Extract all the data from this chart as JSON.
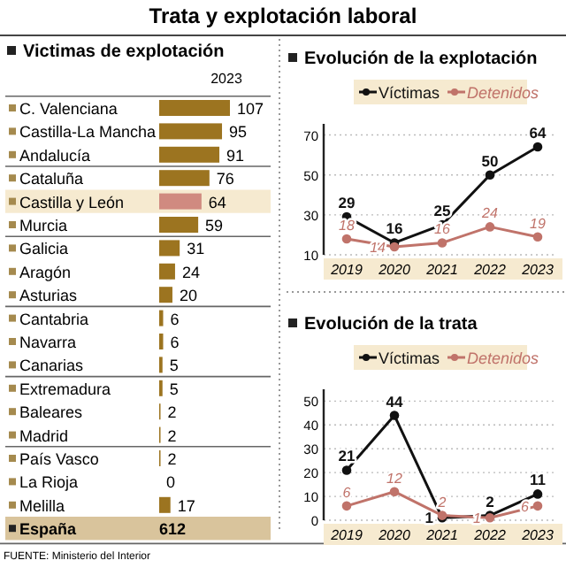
{
  "chart_data": [
    {
      "type": "bar",
      "orientation": "horizontal",
      "title": "Trata y explotación laboral",
      "subtitle": "Victimas de explotación",
      "legend_title": "2023",
      "relative": false,
      "data_labels": true,
      "categories": [
        "C. Valenciana",
        "Castilla-La Mancha",
        "Andalucía",
        "Cataluña",
        "Castilla y León",
        "Murcia",
        "Galicia",
        "Aragón",
        "Asturias",
        "Cantabria",
        "Navarra",
        "Canarias",
        "Extremadura",
        "Baleares",
        "Madrid",
        "País Vasco",
        "La Rioja",
        "Melilla"
      ],
      "values": [
        107,
        95,
        91,
        76,
        64,
        59,
        31,
        24,
        20,
        6,
        6,
        5,
        5,
        2,
        2,
        2,
        0,
        17
      ],
      "colors": [
        "#9c7420",
        "#9c7420",
        "#9c7420",
        "#9c7420",
        "#d08a80",
        "#9c7420",
        "#9c7420",
        "#9c7420",
        "#9c7420",
        "#9c7420",
        "#9c7420",
        "#9c7420",
        "#9c7420",
        "#9c7420",
        "#9c7420",
        "#9c7420",
        "#9c7420",
        "#9c7420"
      ],
      "annotations": [
        "España",
        "612",
        "FUENTE: Ministerio del Interior"
      ]
    },
    {
      "type": "line",
      "title": "Evolución de la explotación",
      "categories": [
        "2019",
        "2020",
        "2021",
        "2022",
        "2023"
      ],
      "ylim": [
        10,
        72
      ],
      "yticks": [
        10,
        30,
        50,
        70
      ],
      "grid": "y",
      "legend": "top",
      "marker": "circle",
      "data_labels": true,
      "series": [
        {
          "name": "Víctimas",
          "color": "#111111",
          "values": [
            29,
            16,
            25,
            50,
            64
          ]
        },
        {
          "name": "Detenidos",
          "color": "#c0736a",
          "values": [
            18,
            14,
            16,
            24,
            19
          ]
        }
      ]
    },
    {
      "type": "line",
      "title": "Evolución de la trata",
      "categories": [
        "2019",
        "2020",
        "2021",
        "2022",
        "2023"
      ],
      "ylim": [
        0,
        52
      ],
      "yticks": [
        0,
        10,
        20,
        30,
        40,
        50
      ],
      "grid": "y",
      "legend": "top",
      "marker": "circle",
      "data_labels": true,
      "series": [
        {
          "name": "Víctimas",
          "color": "#111111",
          "values": [
            21,
            44,
            1,
            2,
            11
          ]
        },
        {
          "name": "Detenidos",
          "color": "#c0736a",
          "values": [
            6,
            12,
            2,
            1,
            6
          ]
        }
      ]
    }
  ]
}
